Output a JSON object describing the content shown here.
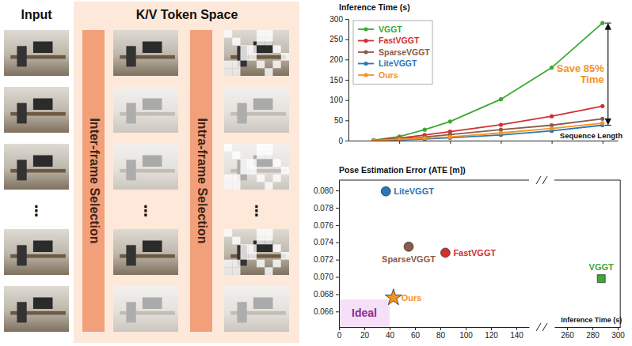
{
  "diagram": {
    "input_title": "Input",
    "token_space_title": "K/V Token Space",
    "stages": [
      "Inter-frame Selection",
      "Intra-frame Selection"
    ],
    "ellipsis": "⋮"
  },
  "chart_data": [
    {
      "type": "line",
      "title": "Inference Time (s)",
      "x_label": "Sequence Length",
      "x": [
        50,
        100,
        150,
        200,
        300,
        400,
        500
      ],
      "xlim": [
        0,
        530
      ],
      "xticks": [
        100,
        200,
        300,
        400,
        500
      ],
      "ylim": [
        0,
        300
      ],
      "yticks": [
        0,
        50,
        100,
        150,
        200,
        250,
        300
      ],
      "tick_labels": "y",
      "grid": false,
      "legend": "upper left",
      "marker": "circle",
      "series": [
        {
          "name": "VGGT",
          "color": "#3aa935",
          "values": [
            1,
            10,
            27,
            47,
            102,
            180,
            290
          ]
        },
        {
          "name": "FastVGGT",
          "color": "#d2302f",
          "values": [
            1,
            6,
            14,
            22,
            39,
            60,
            85
          ]
        },
        {
          "name": "SparseVGGT",
          "color": "#8c5a4b",
          "values": [
            1,
            4,
            9,
            15,
            27,
            38,
            54
          ]
        },
        {
          "name": "LiteVGGT",
          "color": "#2a78b5",
          "values": [
            0.5,
            2,
            4,
            7,
            14,
            24,
            38
          ]
        },
        {
          "name": "Ours",
          "color": "#f5931e",
          "values": [
            0.5,
            3,
            6,
            9,
            19,
            30,
            43
          ]
        }
      ],
      "annotations": [
        {
          "text": "Save 85% Time",
          "color": "#f5931e"
        }
      ]
    },
    {
      "type": "scatter",
      "title": "Pose Estimation Error (ATE [m])",
      "x_label": "Inference Time (s)",
      "xlim": [
        0,
        302
      ],
      "xbreak": [
        150,
        250
      ],
      "xticks": [
        0,
        20,
        40,
        60,
        80,
        100,
        120,
        140,
        260,
        280,
        300
      ],
      "ylim": [
        0.0642,
        0.0812
      ],
      "yticks": [
        0.066,
        0.068,
        {
          "value": 0.07,
          "label": "0.070"
        },
        0.072,
        0.074,
        0.076,
        0.078,
        {
          "value": 0.08,
          "label": "0.080"
        }
      ],
      "grid": false,
      "series": [
        {
          "name": "LiteVGGT",
          "color": "#2a78b5",
          "marker": "circle",
          "x": [
            37
          ],
          "values": [
            0.0799
          ]
        },
        {
          "name": "SparseVGGT",
          "color": "#8c5a4b",
          "marker": "circle",
          "x": [
            55
          ],
          "values": [
            0.0735
          ]
        },
        {
          "name": "FastVGGT",
          "color": "#d2302f",
          "marker": "circle",
          "x": [
            84
          ],
          "values": [
            0.0728
          ]
        },
        {
          "name": "VGGT",
          "color": "#3aa935",
          "marker": "square",
          "x": [
            287
          ],
          "values": [
            0.0698
          ]
        },
        {
          "name": "Ours",
          "color": "#f5931e",
          "marker": "star",
          "x": [
            43
          ],
          "values": [
            0.0676
          ]
        }
      ],
      "annotations": [
        {
          "text": "Ideal",
          "color": "#f5e0f7",
          "x": [
            0,
            40
          ],
          "y": [
            0.0642,
            0.0674
          ]
        }
      ]
    }
  ]
}
